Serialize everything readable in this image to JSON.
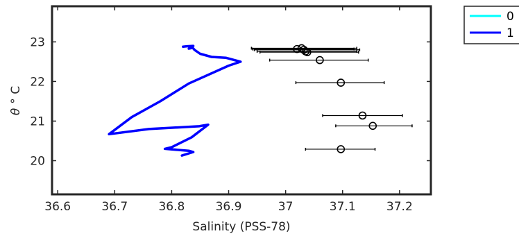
{
  "chart_data": {
    "type": "line",
    "xlabel": "Salinity (PSS-78)",
    "ylabel_symbol": "θ",
    "ylabel_unit": "° C",
    "xlim": [
      36.59,
      37.255
    ],
    "ylim": [
      19.15,
      23.9
    ],
    "xticks": [
      36.6,
      36.7,
      36.8,
      36.9,
      37.0,
      37.1,
      37.2
    ],
    "xtick_labels": [
      "36.6",
      "36.7",
      "36.8",
      "36.9",
      "37",
      "37.1",
      "37.2"
    ],
    "yticks": [
      20,
      21,
      22,
      23
    ],
    "ytick_labels": [
      "20",
      "21",
      "22",
      "23"
    ],
    "grid": false,
    "legend_position": "outside-top-right",
    "series": [
      {
        "name": "0",
        "color": "#00ffff",
        "points": []
      },
      {
        "name": "1",
        "color": "#0000ff",
        "points": [
          [
            36.818,
            20.13
          ],
          [
            36.838,
            20.22
          ],
          [
            36.83,
            20.25
          ],
          [
            36.788,
            20.3
          ],
          [
            36.8,
            20.34
          ],
          [
            36.835,
            20.59
          ],
          [
            36.864,
            20.91
          ],
          [
            36.848,
            20.87
          ],
          [
            36.76,
            20.8
          ],
          [
            36.69,
            20.67
          ],
          [
            36.73,
            21.1
          ],
          [
            36.78,
            21.5
          ],
          [
            36.83,
            21.95
          ],
          [
            36.9,
            22.4
          ],
          [
            36.921,
            22.5
          ],
          [
            36.895,
            22.6
          ],
          [
            36.87,
            22.62
          ],
          [
            36.85,
            22.7
          ],
          [
            36.84,
            22.8
          ],
          [
            36.837,
            22.85
          ],
          [
            36.83,
            22.83
          ],
          [
            36.838,
            22.9
          ],
          [
            36.827,
            22.89
          ],
          [
            36.82,
            22.88
          ]
        ]
      }
    ],
    "error_bars": {
      "color": "#000000",
      "points": [
        {
          "x": 37.02,
          "y": 22.82,
          "xerr_low": 36.942,
          "xerr_high": 37.12
        },
        {
          "x": 37.028,
          "y": 22.84,
          "xerr_low": 36.94,
          "xerr_high": 37.125
        },
        {
          "x": 37.032,
          "y": 22.8,
          "xerr_low": 36.945,
          "xerr_high": 37.13
        },
        {
          "x": 37.035,
          "y": 22.76,
          "xerr_low": 36.95,
          "xerr_high": 37.125
        },
        {
          "x": 37.038,
          "y": 22.74,
          "xerr_low": 36.955,
          "xerr_high": 37.128
        },
        {
          "x": 37.06,
          "y": 22.54,
          "xerr_low": 36.972,
          "xerr_high": 37.145
        },
        {
          "x": 37.097,
          "y": 21.97,
          "xerr_low": 37.018,
          "xerr_high": 37.173
        },
        {
          "x": 37.135,
          "y": 21.14,
          "xerr_low": 37.065,
          "xerr_high": 37.205
        },
        {
          "x": 37.153,
          "y": 20.88,
          "xerr_low": 37.088,
          "xerr_high": 37.222
        },
        {
          "x": 37.097,
          "y": 20.29,
          "xerr_low": 37.035,
          "xerr_high": 37.157
        }
      ]
    }
  }
}
